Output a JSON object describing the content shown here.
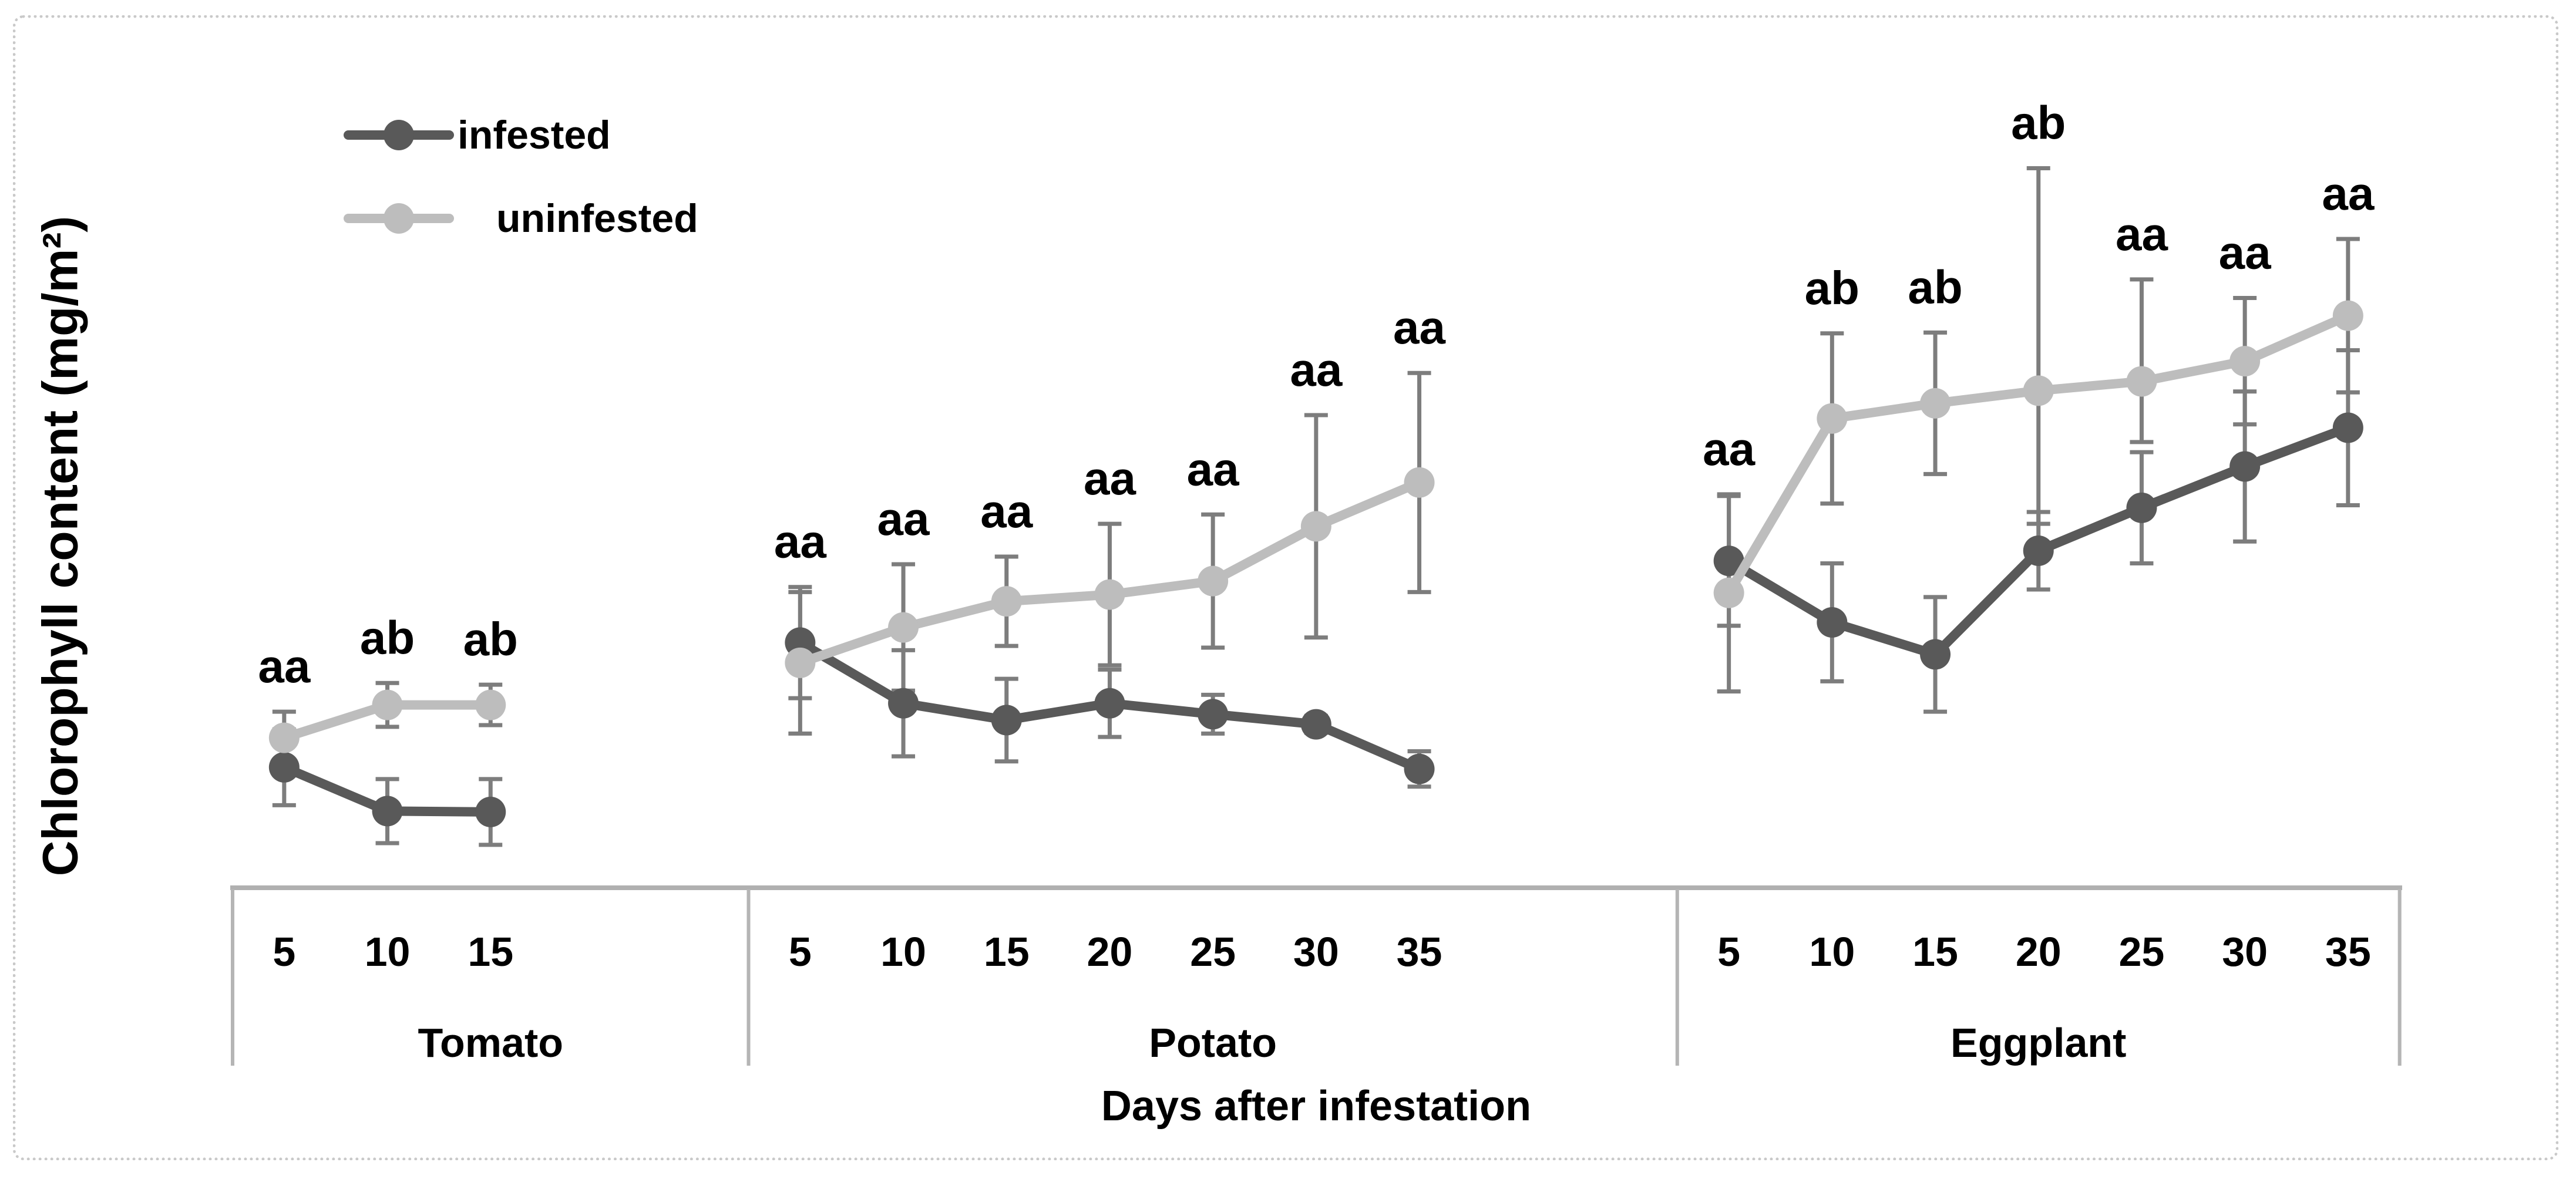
{
  "legend": {
    "items": [
      {
        "label": "infested",
        "series": "infested"
      },
      {
        "label": "uninfested",
        "series": "uninfested"
      }
    ]
  },
  "series_colors": {
    "infested": "#595959",
    "uninfested": "#bdbdbd"
  },
  "style_colors": {
    "error_bar": "#7d7d7d",
    "axis_line": "#b0b0b0",
    "divider": "#b5b5b5",
    "frame_border": "#c9c9c9",
    "text": "#000000"
  },
  "chart_data": {
    "type": "line",
    "title": "",
    "ylabel": "Chlorophyll content (mg/m²)",
    "xlabel": "Days after infestation",
    "value_axis_note": "y axis shows no numeric scale; values estimated as percent of plot height above the category axis",
    "ylim": [
      0,
      100
    ],
    "grid": false,
    "legend_position": "top-left inset",
    "groups": [
      {
        "name": "Tomato",
        "categories": [
          "5",
          "10",
          "15"
        ],
        "sig_labels": [
          "aa",
          "ab",
          "ab"
        ],
        "series": [
          {
            "name": "infested",
            "values": [
              14.3,
              9.1,
              9.0
            ],
            "err_up": [
              4.5,
              3.8,
              3.9
            ],
            "err_down": [
              4.5,
              3.8,
              3.9
            ]
          },
          {
            "name": "uninfested",
            "values": [
              17.8,
              21.7,
              21.7
            ],
            "err_up": [
              3.1,
              2.6,
              2.4
            ],
            "err_down": [
              3.1,
              2.6,
              2.4
            ]
          }
        ]
      },
      {
        "name": "Potato",
        "categories": [
          "5",
          "10",
          "15",
          "20",
          "25",
          "30",
          "35"
        ],
        "sig_labels": [
          "aa",
          "aa",
          "aa",
          "aa",
          "aa",
          "aa",
          "aa"
        ],
        "series": [
          {
            "name": "infested",
            "values": [
              29.1,
              21.9,
              19.9,
              21.9,
              20.6,
              19.4,
              14.1
            ],
            "err_up": [
              6.6,
              6.3,
              4.9,
              4.0,
              2.3,
              1.0,
              2.1
            ],
            "err_down": [
              6.6,
              6.3,
              4.9,
              4.0,
              2.3,
              1.0,
              2.1
            ]
          },
          {
            "name": "uninfested",
            "values": [
              26.7,
              30.9,
              34.0,
              34.8,
              36.4,
              42.9,
              48.1
            ],
            "err_up": [
              8.4,
              7.5,
              5.3,
              8.4,
              7.9,
              13.2,
              13.0
            ],
            "err_down": [
              8.4,
              7.5,
              5.3,
              8.4,
              7.9,
              13.2,
              13.0
            ]
          }
        ]
      },
      {
        "name": "Eggplant",
        "categories": [
          "5",
          "10",
          "15",
          "20",
          "25",
          "30",
          "35"
        ],
        "sig_labels": [
          "aa",
          "ab",
          "ab",
          "ab",
          "aa",
          "aa",
          "aa"
        ],
        "series": [
          {
            "name": "infested",
            "values": [
              38.8,
              31.5,
              27.7,
              40.0,
              45.1,
              50.0,
              54.6
            ],
            "err_up": [
              7.7,
              7.0,
              6.8,
              4.6,
              6.6,
              8.9,
              9.2
            ],
            "err_down": [
              7.7,
              7.0,
              6.8,
              4.6,
              6.6,
              8.9,
              9.2
            ]
          },
          {
            "name": "uninfested",
            "values": [
              35.0,
              55.7,
              57.5,
              59.0,
              60.1,
              62.5,
              67.9
            ],
            "err_up": [
              11.7,
              10.1,
              8.4,
              26.4,
              12.1,
              7.5,
              9.1
            ],
            "err_down": [
              11.7,
              10.1,
              8.4,
              15.8,
              7.2,
              7.5,
              9.1
            ]
          }
        ]
      }
    ]
  }
}
